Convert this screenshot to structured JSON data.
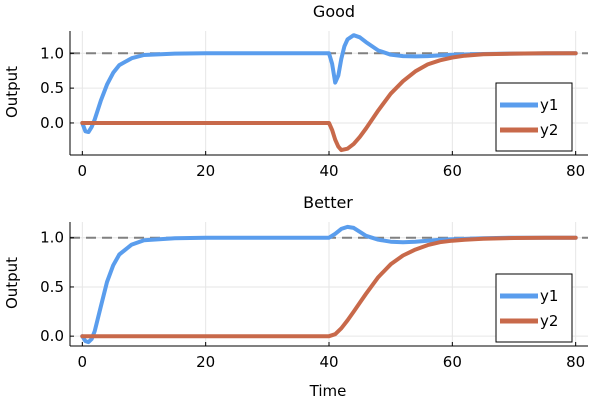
{
  "chart_data": [
    {
      "type": "line",
      "title": "Good",
      "xlabel": "",
      "ylabel": "Output",
      "xlim": [
        -2,
        82
      ],
      "ylim": [
        -0.46,
        1.32
      ],
      "xticks": [
        0,
        20,
        40,
        60,
        80
      ],
      "xtick_labels": [
        "0",
        "20",
        "40",
        "60",
        "80"
      ],
      "yticks": [
        0.0,
        0.5,
        1.0
      ],
      "ytick_labels": [
        "0.0",
        "0.5",
        "1.0"
      ],
      "grid": true,
      "legend": "bottom-right",
      "reference_line": {
        "y": 1.0,
        "style": "dashed",
        "color": "#808080"
      },
      "series": [
        {
          "name": "y1",
          "color": "#5a9ded",
          "x": [
            0,
            0.5,
            1,
            1.5,
            2,
            3,
            4,
            5,
            6,
            8,
            10,
            15,
            20,
            30,
            40,
            40.5,
            41,
            41.5,
            42,
            42.5,
            43,
            44,
            45,
            46,
            48,
            50,
            52,
            54,
            56,
            58,
            60,
            65,
            70,
            80
          ],
          "y": [
            0,
            -0.12,
            -0.13,
            -0.06,
            0.05,
            0.32,
            0.55,
            0.72,
            0.83,
            0.93,
            0.975,
            0.995,
            1.0,
            1.0,
            1.0,
            0.85,
            0.58,
            0.68,
            0.92,
            1.1,
            1.2,
            1.26,
            1.23,
            1.16,
            1.04,
            0.98,
            0.96,
            0.955,
            0.96,
            0.97,
            0.98,
            0.99,
            0.995,
            1.0
          ]
        },
        {
          "name": "y2",
          "color": "#c8694a",
          "x": [
            0,
            10,
            20,
            30,
            40,
            40.5,
            41,
            41.5,
            42,
            43,
            44,
            45,
            46,
            48,
            50,
            52,
            54,
            56,
            58,
            60,
            62,
            65,
            70,
            75,
            80
          ],
          "y": [
            0,
            0,
            0,
            0,
            0,
            -0.1,
            -0.24,
            -0.34,
            -0.39,
            -0.37,
            -0.3,
            -0.2,
            -0.08,
            0.18,
            0.42,
            0.6,
            0.74,
            0.84,
            0.9,
            0.94,
            0.965,
            0.985,
            0.995,
            1.0,
            1.0
          ]
        }
      ]
    },
    {
      "type": "line",
      "title": "Better",
      "xlabel": "Time",
      "ylabel": "Output",
      "xlim": [
        -2,
        82
      ],
      "ylim": [
        -0.1,
        1.16
      ],
      "xticks": [
        0,
        20,
        40,
        60,
        80
      ],
      "xtick_labels": [
        "0",
        "20",
        "40",
        "60",
        "80"
      ],
      "yticks": [
        0.0,
        0.5,
        1.0
      ],
      "ytick_labels": [
        "0.0",
        "0.5",
        "1.0"
      ],
      "grid": true,
      "legend": "bottom-right",
      "reference_line": {
        "y": 1.0,
        "style": "dashed",
        "color": "#808080"
      },
      "series": [
        {
          "name": "y1",
          "color": "#5a9ded",
          "x": [
            0,
            0.5,
            1,
            1.5,
            2,
            3,
            4,
            5,
            6,
            8,
            10,
            15,
            20,
            30,
            40,
            41,
            42,
            43,
            44,
            45,
            46,
            48,
            50,
            52,
            54,
            56,
            58,
            60,
            65,
            70,
            80
          ],
          "y": [
            0,
            -0.05,
            -0.06,
            -0.03,
            0.05,
            0.3,
            0.55,
            0.72,
            0.83,
            0.93,
            0.975,
            0.995,
            1.0,
            1.0,
            1.0,
            1.04,
            1.09,
            1.11,
            1.1,
            1.06,
            1.02,
            0.98,
            0.96,
            0.955,
            0.96,
            0.97,
            0.98,
            0.985,
            0.995,
            1.0,
            1.0
          ]
        },
        {
          "name": "y2",
          "color": "#c8694a",
          "x": [
            0,
            10,
            20,
            30,
            40,
            41,
            42,
            43,
            44,
            45,
            46,
            48,
            50,
            52,
            54,
            56,
            58,
            60,
            62,
            65,
            70,
            75,
            80
          ],
          "y": [
            0,
            0,
            0,
            0,
            0,
            0.02,
            0.08,
            0.16,
            0.25,
            0.34,
            0.43,
            0.6,
            0.73,
            0.82,
            0.88,
            0.925,
            0.955,
            0.97,
            0.98,
            0.99,
            0.997,
            1.0,
            1.0
          ]
        }
      ]
    }
  ]
}
